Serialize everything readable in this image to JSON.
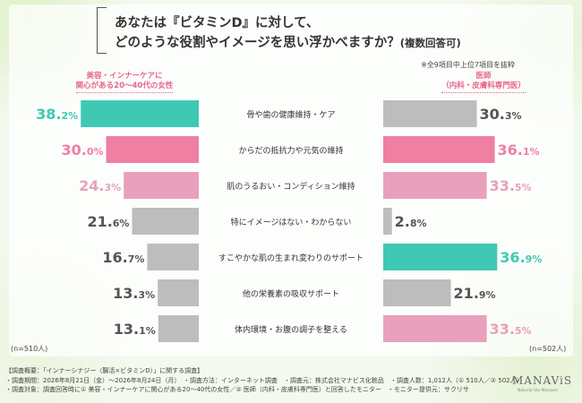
{
  "title": {
    "line1": "あなたは『ビタミンD』に対して、",
    "line2": "どのような役割やイメージを思い浮かべますか？",
    "line2_sub": "(複数回答可)"
  },
  "note": "※全9項目中上位7項目を抜粋",
  "left_group": {
    "line1": "美容・インナーケアに",
    "line2": "関心がある20～40代の女性"
  },
  "right_group": {
    "line1": "医師",
    "line2": "（内科・皮膚科専門医）"
  },
  "left_n": "(n=510人)",
  "right_n": "(n=502人)",
  "chart_data": {
    "type": "bar",
    "categories": [
      "骨や歯の健康維持・ケア",
      "からだの抵抗力や元気の維持",
      "肌のうるおい・コンディション維持",
      "特にイメージはない・わからない",
      "すこやかな肌の生まれ変わりのサポート",
      "他の栄養素の吸収サポート",
      "体内環境・お腹の調子を整える"
    ],
    "series": [
      {
        "name": "美容・インナーケアに関心がある20～40代の女性",
        "values": [
          38.2,
          30.0,
          24.3,
          21.6,
          16.7,
          13.3,
          13.1
        ],
        "labels": [
          [
            "38.",
            "2%"
          ],
          [
            "30.",
            "0%"
          ],
          [
            "24.",
            "3%"
          ],
          [
            "21.",
            "6%"
          ],
          [
            "16.",
            "7%"
          ],
          [
            "13.",
            "3%"
          ],
          [
            "13.",
            "1%"
          ]
        ],
        "colors": [
          "#3fc9b4",
          "#ef7fa3",
          "#e8a0bd",
          "#bdbdbd",
          "#bdbdbd",
          "#bdbdbd",
          "#bdbdbd"
        ]
      },
      {
        "name": "医師（内科・皮膚科専門医）",
        "values": [
          30.3,
          36.1,
          33.5,
          2.8,
          36.9,
          21.9,
          33.5
        ],
        "labels": [
          [
            "30.",
            "3%"
          ],
          [
            "36.",
            "1%"
          ],
          [
            "33.",
            "5%"
          ],
          [
            "2.",
            "8%"
          ],
          [
            "36.",
            "9%"
          ],
          [
            "21.",
            "9%"
          ],
          [
            "33.",
            "5%"
          ]
        ],
        "colors": [
          "#bdbdbd",
          "#ef7fa3",
          "#e8a0bd",
          "#bdbdbd",
          "#3fc9b4",
          "#bdbdbd",
          "#e8a0bd"
        ]
      }
    ],
    "label_colors": [
      "#3fc9b4",
      "#ef7fa3",
      "#e8a0bd",
      "#555555",
      "#555555",
      "#555555",
      "#555555"
    ],
    "right_label_colors": [
      "#555555",
      "#ef7fa3",
      "#e8a0bd",
      "#555555",
      "#3fc9b4",
      "#555555",
      "#e8a0bd"
    ]
  },
  "footer": {
    "line1": "【調査概要：「インナーシナジー（腸活×ビタミンD）」に関する調査】",
    "line2": "・調査期間：2026年8月21日（金）～2026年8月24日（月）　・調査方法：インターネット調査　・調査元：株式会社マナビス化粧品　・調査人数：1,012人（① 510人／② 502人）",
    "line3": "・調査対象：調査回答時に① 美容・インナーケアに関心がある20～40代の女性／② 医師（内科・皮膚科専門医）と回答したモニター　・モニター提供元：サクリサ"
  },
  "logo": {
    "text": "MANAViS",
    "sub": "Natural Via Manavis"
  }
}
